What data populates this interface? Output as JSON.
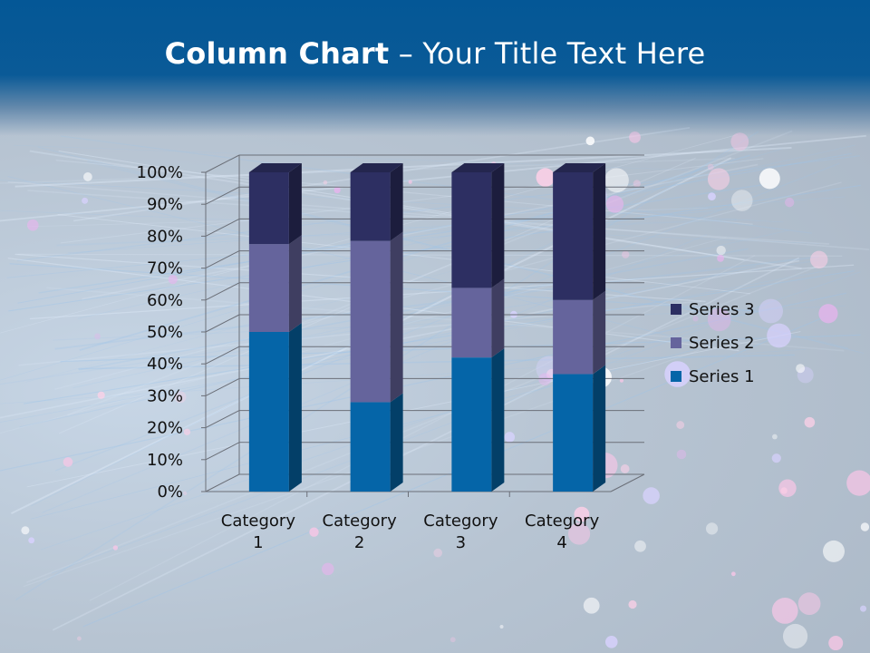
{
  "slide": {
    "title_bold": "Column Chart",
    "title_rest": " – Your Title Text Here"
  },
  "colors": {
    "header": "#045796",
    "series1": "#0565A8",
    "series2": "#65649C",
    "series3": "#2D2F62"
  },
  "chart_data": {
    "type": "bar",
    "stacked": "100%",
    "three_d": true,
    "categories": [
      [
        "Category",
        "1"
      ],
      [
        "Category",
        "2"
      ],
      [
        "Category",
        "3"
      ],
      [
        "Category",
        "4"
      ]
    ],
    "series": [
      {
        "name": "Series 1",
        "values": [
          50.0,
          28.0,
          42.0,
          36.8
        ]
      },
      {
        "name": "Series 2",
        "values": [
          27.5,
          50.5,
          21.8,
          23.2
        ]
      },
      {
        "name": "Series 3",
        "values": [
          22.5,
          21.5,
          36.2,
          40.0
        ]
      }
    ],
    "ylim": [
      0,
      100
    ],
    "yticks": [
      "0%",
      "10%",
      "20%",
      "30%",
      "40%",
      "50%",
      "60%",
      "70%",
      "80%",
      "90%",
      "100%"
    ],
    "legend_position": "right",
    "grid": true
  }
}
